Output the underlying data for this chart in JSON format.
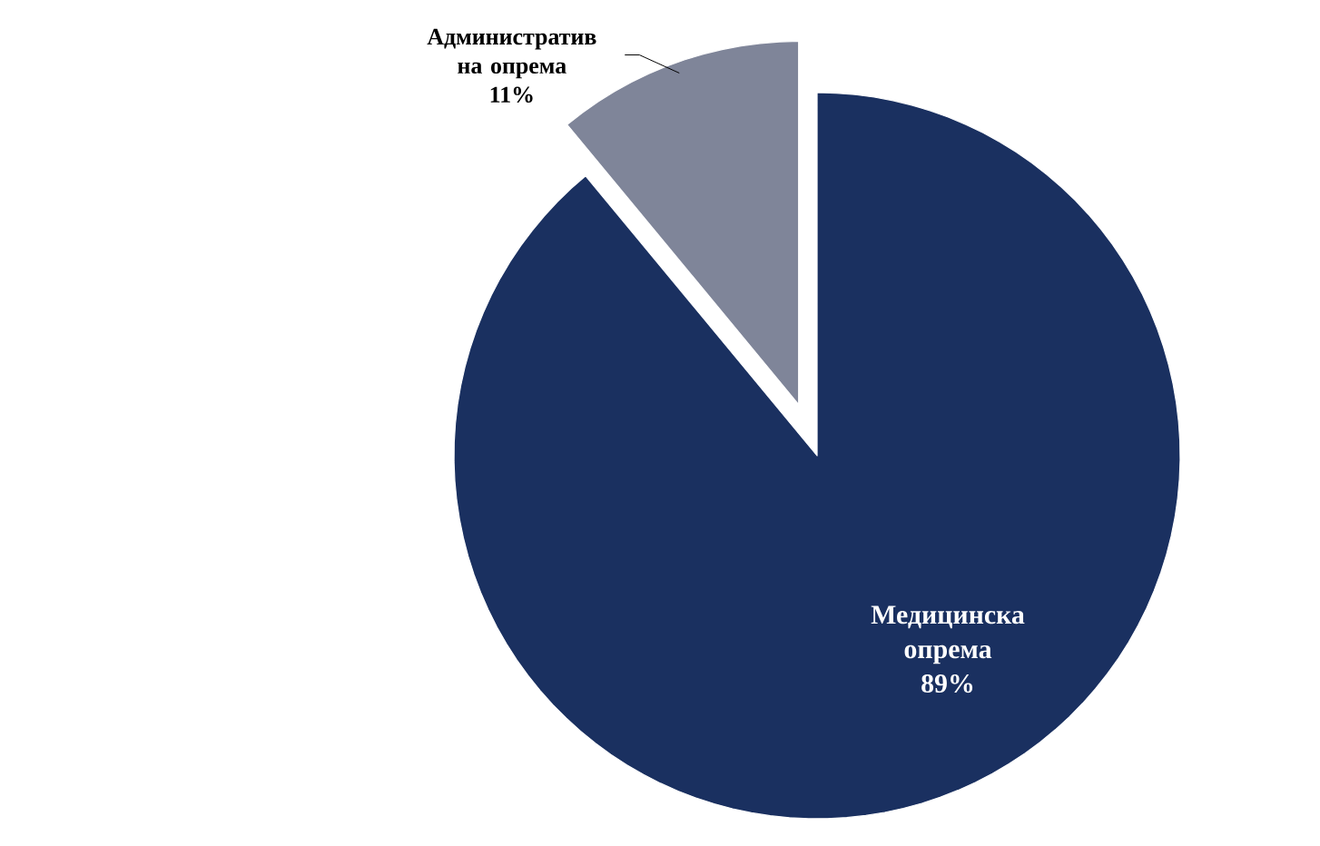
{
  "chart_data": {
    "type": "pie",
    "categories": [
      "Медицинска опрема",
      "Административ на опрема"
    ],
    "values": [
      89,
      11
    ],
    "value_labels": [
      "89%",
      "11%"
    ],
    "colors": [
      "#1a3060",
      "#7f8599"
    ]
  }
}
